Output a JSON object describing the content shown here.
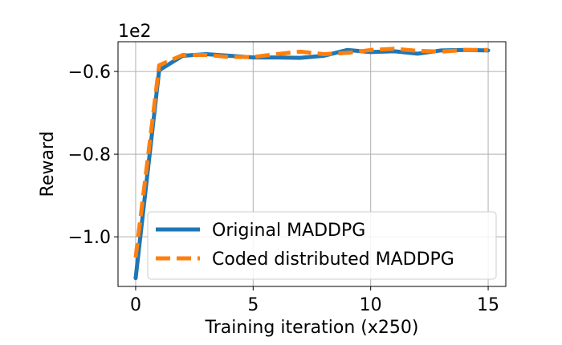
{
  "chart_data": {
    "type": "line",
    "xlabel": "Training iteration (x250)",
    "ylabel": "Reward",
    "offset_text": "1e2",
    "xlim": [
      -0.75,
      15.75
    ],
    "ylim": [
      -1.12,
      -0.528
    ],
    "x_ticks": [
      0,
      5,
      10,
      15
    ],
    "x_tick_labels": [
      "0",
      "5",
      "10",
      "15"
    ],
    "y_ticks": [
      -1.0,
      -0.8,
      -0.6
    ],
    "y_tick_labels": [
      "−1.0",
      "−0.8",
      "−0.6"
    ],
    "grid": true,
    "legend_position": "lower-right",
    "series": [
      {
        "name": "Original MADDPG",
        "color": "#1f77b4",
        "style": "solid",
        "x": [
          0,
          1,
          2,
          3,
          4,
          5,
          6,
          7,
          8,
          9,
          10,
          11,
          12,
          13,
          14,
          15
        ],
        "y": [
          -1.1,
          -0.597,
          -0.562,
          -0.558,
          -0.562,
          -0.566,
          -0.566,
          -0.567,
          -0.562,
          -0.548,
          -0.553,
          -0.551,
          -0.557,
          -0.549,
          -0.548,
          -0.549
        ]
      },
      {
        "name": "Coded distributed MADDPG",
        "color": "#ff7f0e",
        "style": "dashed",
        "x": [
          0,
          1,
          2,
          3,
          4,
          5,
          6,
          7,
          8,
          9,
          10,
          11,
          12,
          13,
          14,
          15
        ],
        "y": [
          -1.05,
          -0.585,
          -0.56,
          -0.56,
          -0.565,
          -0.565,
          -0.558,
          -0.552,
          -0.558,
          -0.555,
          -0.548,
          -0.545,
          -0.55,
          -0.552,
          -0.548,
          -0.548
        ]
      }
    ]
  }
}
